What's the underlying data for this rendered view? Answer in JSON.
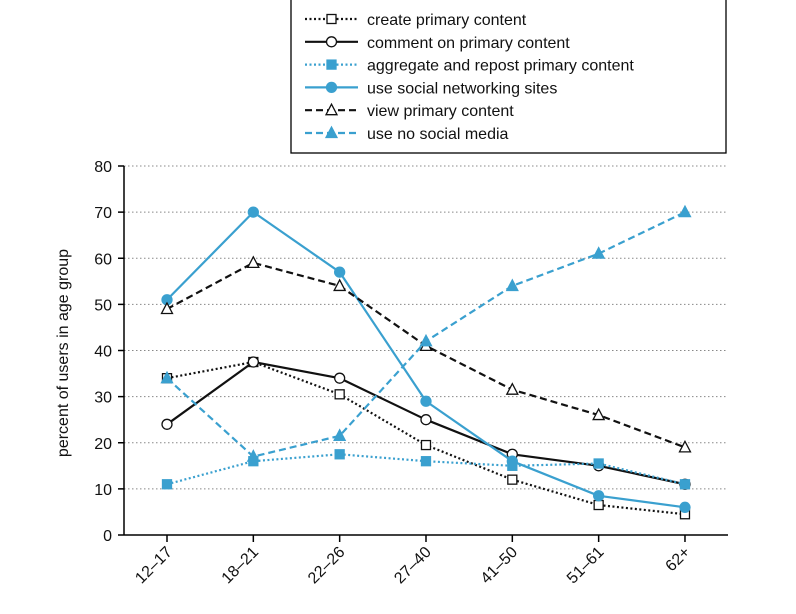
{
  "chart_data": {
    "type": "line",
    "title": "",
    "xlabel": "",
    "ylabel": "percent of users in age group",
    "ylim": [
      0,
      80
    ],
    "yticks": [
      0,
      10,
      20,
      30,
      40,
      50,
      60,
      70,
      80
    ],
    "categories": [
      "12–17",
      "18–21",
      "22–26",
      "27–40",
      "41–50",
      "51–61",
      "62+"
    ],
    "grid": "horizontal dotted",
    "legend_position": "top-right",
    "series": [
      {
        "name": "create primary content",
        "values": [
          34,
          37.5,
          30.5,
          19.5,
          12,
          6.5,
          4.5
        ],
        "color": "#111111",
        "dash": "dotted",
        "marker": "open-square"
      },
      {
        "name": "comment on primary content",
        "values": [
          24,
          37.5,
          34,
          25,
          17.5,
          15,
          11
        ],
        "color": "#111111",
        "dash": "solid",
        "marker": "open-circle"
      },
      {
        "name": "aggregate and repost primary content",
        "values": [
          11,
          16,
          17.5,
          16,
          15,
          15.5,
          11
        ],
        "color": "#3aa0cf",
        "dash": "dotted",
        "marker": "filled-square"
      },
      {
        "name": "use social networking sites",
        "values": [
          51,
          70,
          57,
          29,
          16,
          8.5,
          6
        ],
        "color": "#3aa0cf",
        "dash": "solid",
        "marker": "filled-circle"
      },
      {
        "name": "view primary content",
        "values": [
          49,
          59,
          54,
          41,
          31.5,
          26,
          19
        ],
        "color": "#111111",
        "dash": "dashed",
        "marker": "open-triangle"
      },
      {
        "name": "use no social media",
        "values": [
          34,
          17,
          21.5,
          42,
          54,
          61,
          70
        ],
        "color": "#3aa0cf",
        "dash": "dashed",
        "marker": "filled-triangle"
      }
    ]
  }
}
